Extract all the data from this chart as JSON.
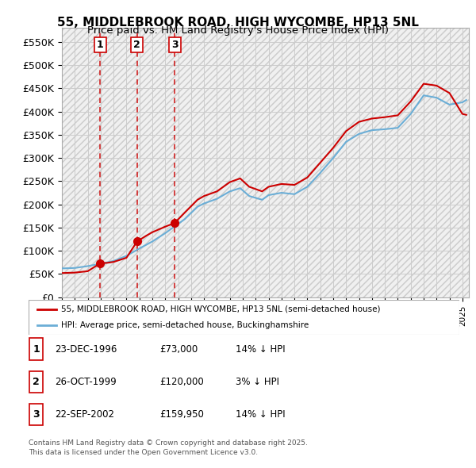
{
  "title1": "55, MIDDLEBROOK ROAD, HIGH WYCOMBE, HP13 5NL",
  "title2": "Price paid vs. HM Land Registry's House Price Index (HPI)",
  "ylabel_ticks": [
    "£0",
    "£50K",
    "£100K",
    "£150K",
    "£200K",
    "£250K",
    "£300K",
    "£350K",
    "£400K",
    "£450K",
    "£500K",
    "£550K"
  ],
  "ytick_vals": [
    0,
    50000,
    100000,
    150000,
    200000,
    250000,
    300000,
    350000,
    400000,
    450000,
    500000,
    550000
  ],
  "ylim": [
    0,
    580000
  ],
  "sale_dates": [
    1996.97,
    1999.82,
    2002.73
  ],
  "sale_prices": [
    73000,
    120000,
    159950
  ],
  "sale_labels": [
    "1",
    "2",
    "3"
  ],
  "legend_line1": "55, MIDDLEBROOK ROAD, HIGH WYCOMBE, HP13 5NL (semi-detached house)",
  "legend_line2": "HPI: Average price, semi-detached house, Buckinghamshire",
  "table_rows": [
    [
      "1",
      "23-DEC-1996",
      "£73,000",
      "14% ↓ HPI"
    ],
    [
      "2",
      "26-OCT-1999",
      "£120,000",
      "3% ↓ HPI"
    ],
    [
      "3",
      "22-SEP-2002",
      "£159,950",
      "14% ↓ HPI"
    ]
  ],
  "footnote": "Contains HM Land Registry data © Crown copyright and database right 2025.\nThis data is licensed under the Open Government Licence v3.0.",
  "hpi_color": "#6baed6",
  "sale_color": "#cc0000",
  "vline_color": "#cc0000",
  "bg_hatch_color": "#e8e8e8",
  "xmin": 1994.0,
  "xmax": 2025.5
}
